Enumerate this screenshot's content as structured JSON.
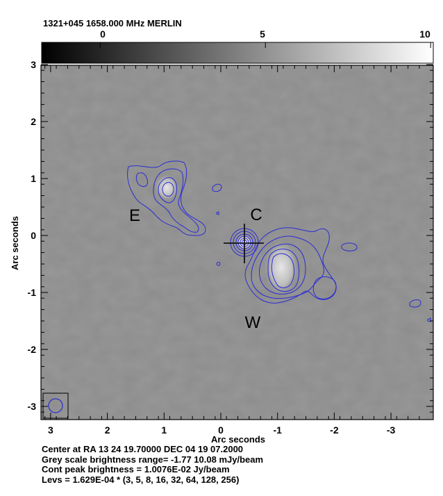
{
  "header": {
    "title": "1321+045  1658.000 MHz  MERLIN"
  },
  "colorbar": {
    "ticks": [
      "0",
      "5",
      "10"
    ],
    "tick_values": [
      0,
      5,
      10
    ],
    "range": [
      -1.77,
      10.08
    ]
  },
  "axes": {
    "xlabel": "Arc seconds",
    "ylabel": "Arc seconds",
    "xticks": [
      "3",
      "2",
      "1",
      "0",
      "-1",
      "-2",
      "-3"
    ],
    "xtick_values": [
      3,
      2,
      1,
      0,
      -1,
      -2,
      -3
    ],
    "yticks": [
      "3",
      "2",
      "1",
      "0",
      "-1",
      "-2",
      "-3"
    ],
    "ytick_values": [
      3,
      2,
      1,
      0,
      -1,
      -2,
      -3
    ]
  },
  "components": {
    "east": "E",
    "core": "C",
    "west": "W"
  },
  "footer": {
    "line1": "Center at RA 13 24 19.70000  DEC 04 19 07.2000",
    "line2": "Grey scale brightness range= -1.77 10.08 mJy/beam",
    "line3": "Cont peak brightness = 1.0076E-02 Jy/beam",
    "line4": "Levs = 1.629E-04 * (3, 5, 8, 16, 32, 64, 128, 256)"
  },
  "colors": {
    "contour": "#2b2bd6",
    "background_grey": "#8c8c8c",
    "frame": "#000000"
  }
}
